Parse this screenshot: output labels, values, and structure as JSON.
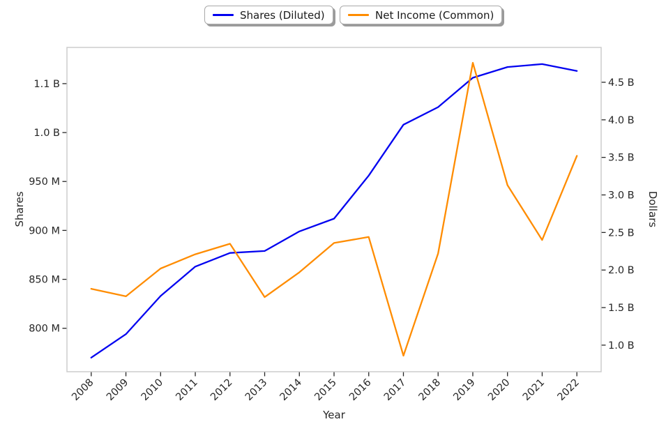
{
  "chart": {
    "legend": [
      {
        "label": "Shares (Diluted)",
        "color": "#0202f0"
      },
      {
        "label": "Net Income (Common)",
        "color": "#ff8c00"
      }
    ],
    "x_axis": {
      "label": "Year"
    },
    "y_left_axis": {
      "label": "Shares"
    },
    "y_right_axis": {
      "label": "Dollars"
    }
  },
  "chart_data": {
    "type": "line",
    "title": "",
    "grid": false,
    "legend_position": "top-center, two separate boxes",
    "x": [
      2008,
      2009,
      2010,
      2011,
      2012,
      2013,
      2014,
      2015,
      2016,
      2017,
      2018,
      2019,
      2020,
      2021,
      2022
    ],
    "x_tick_labels": [
      "2008",
      "2009",
      "2010",
      "2011",
      "2012",
      "2013",
      "2014",
      "2015",
      "2016",
      "2017",
      "2018",
      "2019",
      "2020",
      "2021",
      "2022"
    ],
    "x_range": [
      2007.3,
      2022.7
    ],
    "series": [
      {
        "name": "Shares (Diluted)",
        "axis": "left",
        "color": "#0202f0",
        "units": "shares (millions)",
        "values_millions": [
          770,
          794,
          833,
          863,
          877,
          879,
          899,
          912,
          956,
          1008,
          1026,
          1056,
          1067,
          1070,
          1063
        ]
      },
      {
        "name": "Net Income (Common)",
        "axis": "right",
        "color": "#ff8c00",
        "units": "dollars (billions)",
        "values_billions": [
          1.75,
          1.65,
          2.02,
          2.21,
          2.35,
          1.64,
          1.97,
          2.36,
          2.44,
          0.86,
          2.22,
          4.76,
          3.13,
          2.4,
          3.52
        ]
      }
    ],
    "left_axis": {
      "label": "Shares",
      "tick_values_millions": [
        800,
        850,
        900,
        950,
        1000,
        1050
      ],
      "tick_labels": [
        "800 M",
        "850 M",
        "900 M",
        "950 M",
        "1.0 B",
        "1.1 B"
      ],
      "range_millions": [
        755.6,
        1087.0
      ]
    },
    "right_axis": {
      "label": "Dollars",
      "tick_values_billions": [
        1.0,
        1.5,
        2.0,
        2.5,
        3.0,
        3.5,
        4.0,
        4.5
      ],
      "tick_labels": [
        "1.0 B",
        "1.5 B",
        "2.0 B",
        "2.5 B",
        "3.0 B",
        "3.5 B",
        "4.0 B",
        "4.5 B"
      ],
      "range_billions": [
        0.646,
        4.964
      ]
    }
  }
}
